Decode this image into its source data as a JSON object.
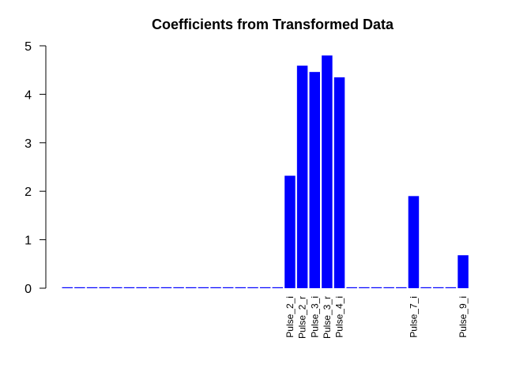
{
  "chart_data": {
    "type": "bar",
    "title": "Coefficients from Transformed Data",
    "xlabel": "",
    "ylabel": "",
    "ylim": [
      0,
      5
    ],
    "yticks": [
      0,
      1,
      2,
      3,
      4,
      5
    ],
    "grid": false,
    "bar_color": "#0000ff",
    "categories": [
      "",
      "",
      "",
      "",
      "",
      "",
      "",
      "",
      "",
      "",
      "",
      "",
      "",
      "",
      "",
      "",
      "",
      "",
      "Pulse_2_i",
      "Pulse_2_r",
      "Pulse_3_i",
      "Pulse_3_r",
      "Pulse_4_i",
      "",
      "",
      "",
      "",
      "",
      "Pulse_7_i",
      "",
      "",
      "",
      "Pulse_9_i"
    ],
    "values": [
      0,
      0,
      0,
      0,
      0,
      0,
      0,
      0,
      0,
      0,
      0,
      0,
      0,
      0,
      0,
      0,
      0,
      0,
      2.32,
      4.59,
      4.46,
      4.8,
      4.35,
      0,
      0,
      0,
      0,
      0,
      1.9,
      0,
      0,
      0,
      0.68
    ]
  }
}
